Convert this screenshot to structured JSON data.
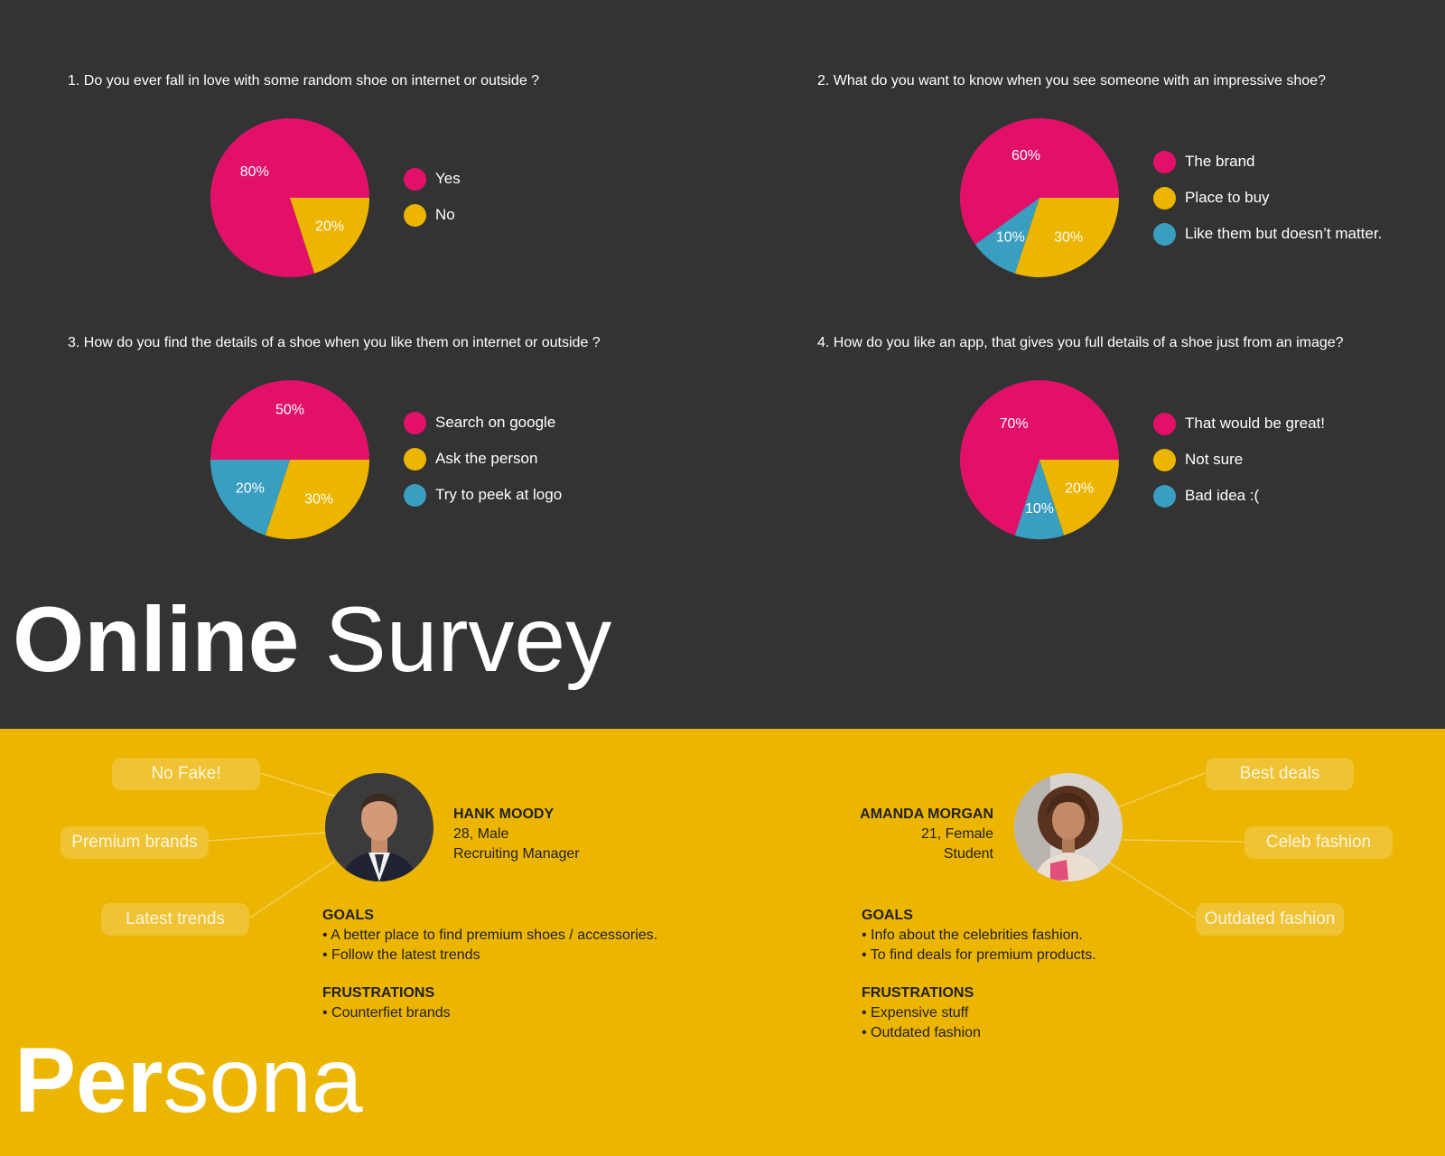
{
  "colors": {
    "pink": "#E3106A",
    "yellow": "#ECB500",
    "blue": "#3A9EC0",
    "dark": "#333333"
  },
  "survey_title": {
    "bold": "Online",
    "light": "Survey"
  },
  "chart_data": [
    {
      "type": "pie",
      "title": "1. Do you ever fall in love with some random shoe on internet or outside ?",
      "categories": [
        "Yes",
        "No"
      ],
      "values": [
        80,
        20
      ],
      "data_labels": [
        "80%",
        "20%"
      ],
      "legend": "right"
    },
    {
      "type": "pie",
      "title": "2. What do you want to know when you see someone with an impressive shoe?",
      "categories": [
        "The brand",
        "Place to buy",
        "Like them but doesn’t matter."
      ],
      "values": [
        60,
        30,
        10
      ],
      "data_labels": [
        "60%",
        "30%",
        "10%"
      ],
      "legend": "right"
    },
    {
      "type": "pie",
      "title": "3. How do you find the details of a shoe when you like them on internet or outside ?",
      "categories": [
        "Search on google",
        "Ask the person",
        "Try to peek at logo"
      ],
      "values": [
        50,
        30,
        20
      ],
      "data_labels": [
        "50%",
        "30%",
        "20%"
      ],
      "legend": "right"
    },
    {
      "type": "pie",
      "title": "4. How do you like an app, that gives you full details of a shoe just from an image?",
      "categories": [
        "That would be great!",
        "Not sure",
        "Bad idea :("
      ],
      "values": [
        70,
        20,
        10
      ],
      "data_labels": [
        "70%",
        "20%",
        "10%"
      ],
      "legend": "right"
    }
  ],
  "persona_title": {
    "bold": "Per",
    "light": "sona"
  },
  "personas": [
    {
      "name": "HANK MOODY",
      "age_gender": "28, Male",
      "occupation": "Recruiting Manager",
      "avatar_icon": "man-portrait-icon",
      "tags": [
        "No Fake!",
        "Premium brands",
        "Latest trends"
      ],
      "goals_title": "GOALS",
      "goals": [
        "• A better place to find premium shoes / accessories.",
        "• Follow the latest trends"
      ],
      "frustrations_title": "FRUSTRATIONS",
      "frustrations": [
        "• Counterfiet brands"
      ]
    },
    {
      "name": "AMANDA MORGAN",
      "age_gender": "21, Female",
      "occupation": "Student",
      "avatar_icon": "woman-portrait-icon",
      "tags": [
        "Best deals",
        "Celeb fashion",
        "Outdated fashion"
      ],
      "goals_title": "GOALS",
      "goals": [
        "• Info about the celebrities fashion.",
        "• To find deals for premium products."
      ],
      "frustrations_title": "FRUSTRATIONS",
      "frustrations": [
        "• Expensive stuff",
        "• Outdated fashion"
      ]
    }
  ]
}
